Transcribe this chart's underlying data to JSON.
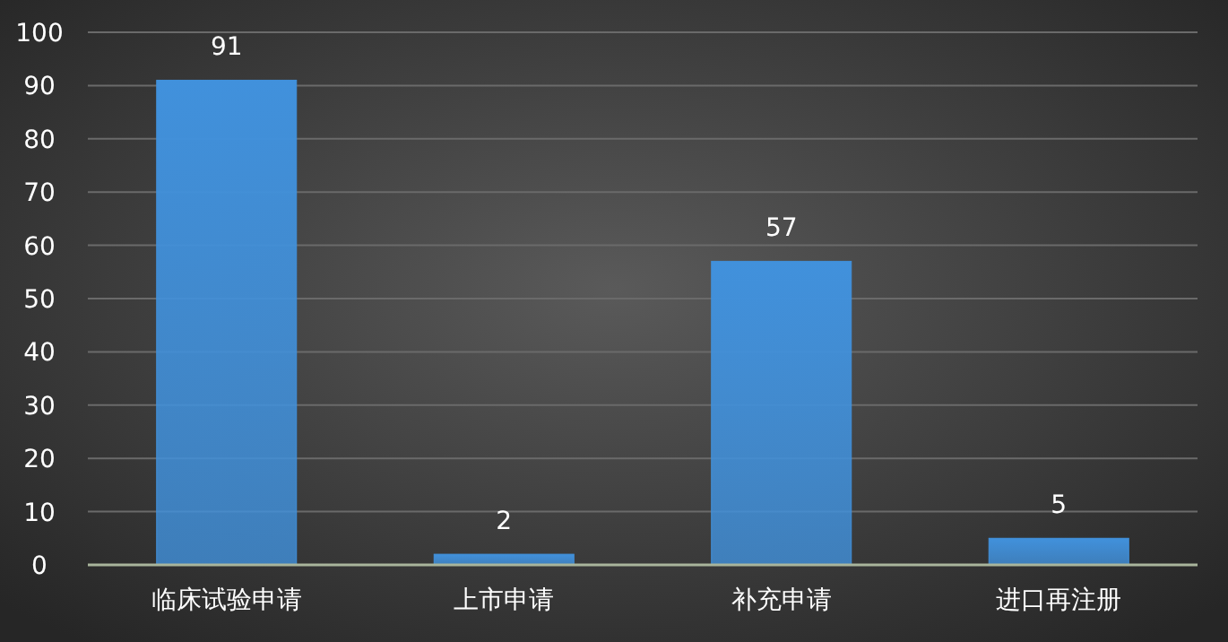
{
  "chart_data": {
    "type": "bar",
    "categories": [
      "临床试验申请",
      "上市申请",
      "补充申请",
      "进口再注册"
    ],
    "values": [
      91,
      2,
      57,
      5
    ],
    "color": "#4191dc",
    "ylim": [
      0,
      100
    ],
    "yticks": [
      0,
      10,
      20,
      30,
      40,
      50,
      60,
      70,
      80,
      90,
      100
    ],
    "grid": "y",
    "data_labels": true
  }
}
